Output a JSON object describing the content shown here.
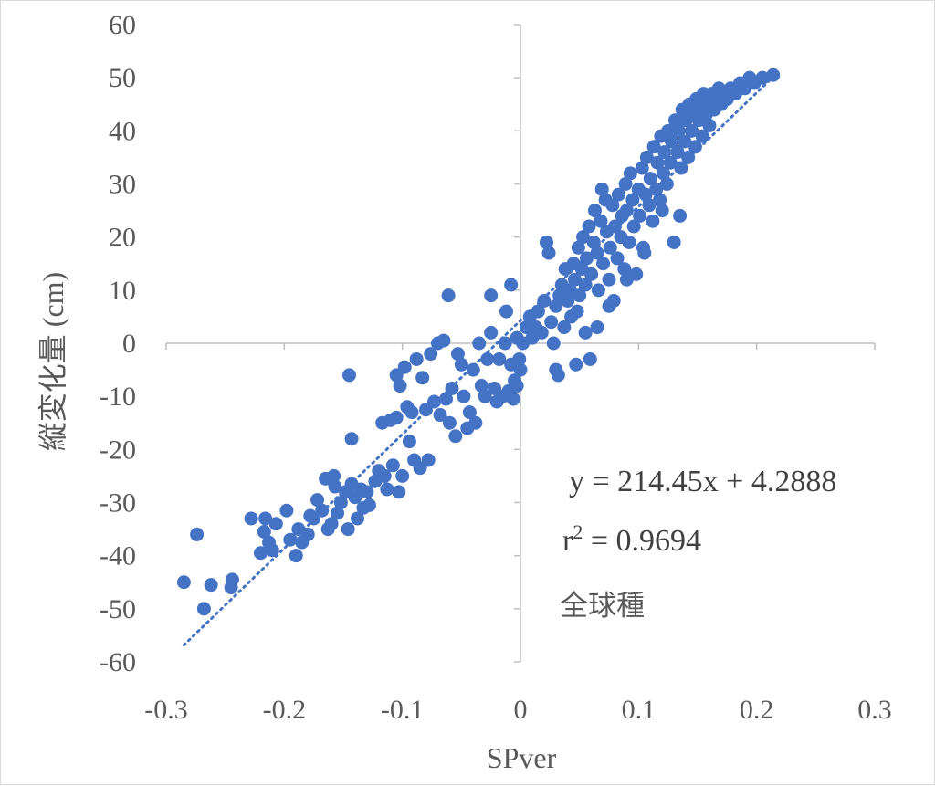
{
  "chart_data": {
    "type": "scatter",
    "xlabel": "SPver",
    "ylabel": "縦変化量 (cm)",
    "xlim": [
      -0.3,
      0.3
    ],
    "ylim": [
      -60,
      60
    ],
    "xticks": [
      "-0.3",
      "-0.2",
      "-0.1",
      "0",
      "0.1",
      "0.2",
      "0.3"
    ],
    "yticks": [
      "60",
      "50",
      "40",
      "30",
      "20",
      "10",
      "0",
      "-10",
      "-20",
      "-30",
      "-40",
      "-50",
      "-60"
    ],
    "grid": false,
    "marker_color": "#4472c4",
    "trendline": {
      "type": "linear",
      "style": "dotted",
      "slope": 214.45,
      "intercept": 4.2888,
      "x_range": [
        -0.285,
        0.215
      ]
    },
    "equation_text": "y = 214.45x + 4.2888",
    "r2_text": {
      "prefix": "r",
      "sup": "2",
      "suffix": " = 0.9694"
    },
    "series_label": "全球種",
    "points": [
      [
        -0.285,
        -45
      ],
      [
        -0.274,
        -36
      ],
      [
        -0.268,
        -50
      ],
      [
        -0.262,
        -45.5
      ],
      [
        -0.245,
        -46
      ],
      [
        -0.244,
        -44.5
      ],
      [
        -0.228,
        -33
      ],
      [
        -0.22,
        -39.5
      ],
      [
        -0.216,
        -33
      ],
      [
        -0.217,
        -35.5
      ],
      [
        -0.213,
        -37.5
      ],
      [
        -0.21,
        -39
      ],
      [
        -0.207,
        -34
      ],
      [
        -0.198,
        -31.5
      ],
      [
        -0.195,
        -37
      ],
      [
        -0.19,
        -40
      ],
      [
        -0.188,
        -35
      ],
      [
        -0.185,
        -37.5
      ],
      [
        -0.18,
        -36
      ],
      [
        -0.178,
        -32.5
      ],
      [
        -0.175,
        -33
      ],
      [
        -0.172,
        -29.5
      ],
      [
        -0.168,
        -31.5
      ],
      [
        -0.165,
        -25.5
      ],
      [
        -0.163,
        -35
      ],
      [
        -0.16,
        -34
      ],
      [
        -0.158,
        -25
      ],
      [
        -0.157,
        -27
      ],
      [
        -0.155,
        -32
      ],
      [
        -0.152,
        -30
      ],
      [
        -0.148,
        -28
      ],
      [
        -0.146,
        -35
      ],
      [
        -0.143,
        -26.5
      ],
      [
        -0.14,
        -29
      ],
      [
        -0.138,
        -33
      ],
      [
        -0.135,
        -27.5
      ],
      [
        -0.133,
        -31
      ],
      [
        -0.13,
        -28
      ],
      [
        -0.145,
        -6
      ],
      [
        -0.143,
        -18
      ],
      [
        -0.128,
        -30.5
      ],
      [
        -0.123,
        -26
      ],
      [
        -0.12,
        -24
      ],
      [
        -0.117,
        -15
      ],
      [
        -0.115,
        -25
      ],
      [
        -0.113,
        -27.5
      ],
      [
        -0.11,
        -14.5
      ],
      [
        -0.108,
        -23
      ],
      [
        -0.105,
        -14
      ],
      [
        -0.103,
        -28
      ],
      [
        -0.1,
        -25
      ],
      [
        -0.105,
        -6
      ],
      [
        -0.102,
        -8
      ],
      [
        -0.098,
        -4.5
      ],
      [
        -0.096,
        -12
      ],
      [
        -0.094,
        -18.5
      ],
      [
        -0.092,
        -13
      ],
      [
        -0.09,
        -22
      ],
      [
        -0.088,
        -3
      ],
      [
        -0.085,
        -23.5
      ],
      [
        -0.083,
        -6.5
      ],
      [
        -0.08,
        -12.5
      ],
      [
        -0.078,
        -22
      ],
      [
        -0.076,
        -2
      ],
      [
        -0.073,
        -11
      ],
      [
        -0.07,
        0
      ],
      [
        -0.068,
        -13.5
      ],
      [
        -0.065,
        0.5
      ],
      [
        -0.063,
        -10.5
      ],
      [
        -0.06,
        -15
      ],
      [
        -0.058,
        -8.5
      ],
      [
        -0.055,
        -17.5
      ],
      [
        -0.053,
        -2
      ],
      [
        -0.05,
        -4
      ],
      [
        -0.048,
        -10
      ],
      [
        -0.045,
        -16
      ],
      [
        -0.043,
        -13
      ],
      [
        -0.04,
        -5
      ],
      [
        -0.038,
        -15
      ],
      [
        -0.061,
        9
      ],
      [
        -0.035,
        0
      ],
      [
        -0.033,
        -8
      ],
      [
        -0.03,
        -10
      ],
      [
        -0.028,
        -3
      ],
      [
        -0.025,
        2
      ],
      [
        -0.022,
        -8.5
      ],
      [
        -0.02,
        -11
      ],
      [
        -0.018,
        -3
      ],
      [
        -0.015,
        -10
      ],
      [
        -0.013,
        0
      ],
      [
        -0.01,
        -9
      ],
      [
        -0.008,
        -4
      ],
      [
        -0.005,
        -7
      ],
      [
        -0.003,
        1
      ],
      [
        -0.025,
        9
      ],
      [
        -0.012,
        6
      ],
      [
        -0.008,
        11
      ],
      [
        -0.003,
        -8
      ],
      [
        0.0,
        -5
      ],
      [
        -0.006,
        -10.5
      ],
      [
        -0.001,
        -3
      ],
      [
        0.002,
        0
      ],
      [
        0.005,
        3
      ],
      [
        0.008,
        5
      ],
      [
        0.01,
        1
      ],
      [
        0.013,
        3
      ],
      [
        0.015,
        6
      ],
      [
        0.018,
        2
      ],
      [
        0.02,
        8
      ],
      [
        0.022,
        19
      ],
      [
        0.024,
        17
      ],
      [
        0.026,
        4
      ],
      [
        0.028,
        0
      ],
      [
        0.03,
        -5
      ],
      [
        0.03,
        7
      ],
      [
        0.032,
        -6
      ],
      [
        0.033,
        9
      ],
      [
        0.035,
        11
      ],
      [
        0.037,
        3
      ],
      [
        0.038,
        14
      ],
      [
        0.04,
        8
      ],
      [
        0.042,
        10
      ],
      [
        0.043,
        5
      ],
      [
        0.045,
        15
      ],
      [
        0.046,
        12
      ],
      [
        0.048,
        6
      ],
      [
        0.049,
        18
      ],
      [
        0.05,
        9
      ],
      [
        0.052,
        14
      ],
      [
        0.053,
        20
      ],
      [
        0.055,
        11
      ],
      [
        0.056,
        16
      ],
      [
        0.058,
        22
      ],
      [
        0.059,
        -3
      ],
      [
        0.06,
        13
      ],
      [
        0.062,
        19
      ],
      [
        0.063,
        25
      ],
      [
        0.065,
        17
      ],
      [
        0.066,
        10
      ],
      [
        0.068,
        23
      ],
      [
        0.069,
        29
      ],
      [
        0.07,
        15
      ],
      [
        0.072,
        27
      ],
      [
        0.073,
        21
      ],
      [
        0.075,
        12
      ],
      [
        0.076,
        18
      ],
      [
        0.078,
        26
      ],
      [
        0.079,
        8
      ],
      [
        0.08,
        22
      ],
      [
        0.082,
        16
      ],
      [
        0.083,
        28
      ],
      [
        0.085,
        20
      ],
      [
        0.086,
        24
      ],
      [
        0.088,
        14
      ],
      [
        0.089,
        30
      ],
      [
        0.09,
        25
      ],
      [
        0.092,
        19
      ],
      [
        0.093,
        32
      ],
      [
        0.095,
        27
      ],
      [
        0.096,
        22
      ],
      [
        0.098,
        13
      ],
      [
        0.1,
        29
      ],
      [
        0.101,
        24
      ],
      [
        0.103,
        33
      ],
      [
        0.104,
        18
      ],
      [
        0.106,
        28
      ],
      [
        0.107,
        35
      ],
      [
        0.109,
        26
      ],
      [
        0.11,
        31
      ],
      [
        0.112,
        23
      ],
      [
        0.113,
        37
      ],
      [
        0.115,
        29
      ],
      [
        0.116,
        34
      ],
      [
        0.118,
        27
      ],
      [
        0.119,
        39
      ],
      [
        0.121,
        32
      ],
      [
        0.122,
        36
      ],
      [
        0.124,
        30
      ],
      [
        0.125,
        40
      ],
      [
        0.127,
        34
      ],
      [
        0.128,
        38
      ],
      [
        0.13,
        19
      ],
      [
        0.131,
        42
      ],
      [
        0.133,
        36
      ],
      [
        0.134,
        40
      ],
      [
        0.136,
        33
      ],
      [
        0.137,
        44
      ],
      [
        0.139,
        38
      ],
      [
        0.14,
        42
      ],
      [
        0.142,
        35
      ],
      [
        0.143,
        45
      ],
      [
        0.145,
        40
      ],
      [
        0.146,
        43
      ],
      [
        0.148,
        37
      ],
      [
        0.149,
        46
      ],
      [
        0.151,
        42
      ],
      [
        0.152,
        44
      ],
      [
        0.154,
        39
      ],
      [
        0.155,
        47
      ],
      [
        0.157,
        43
      ],
      [
        0.158,
        45
      ],
      [
        0.16,
        41
      ],
      [
        0.162,
        47
      ],
      [
        0.164,
        44
      ],
      [
        0.166,
        46
      ],
      [
        0.168,
        48
      ],
      [
        0.17,
        45
      ],
      [
        0.172,
        47
      ],
      [
        0.175,
        46
      ],
      [
        0.178,
        48
      ],
      [
        0.182,
        47
      ],
      [
        0.186,
        49
      ],
      [
        0.19,
        48
      ],
      [
        0.194,
        50
      ],
      [
        0.198,
        49
      ],
      [
        0.205,
        50
      ],
      [
        0.214,
        50.5
      ],
      [
        0.09,
        12
      ],
      [
        0.075,
        7
      ],
      [
        0.065,
        3
      ],
      [
        0.055,
        2
      ],
      [
        0.047,
        -4
      ],
      [
        0.12,
        25
      ],
      [
        0.135,
        24
      ],
      [
        0.105,
        17
      ]
    ]
  }
}
